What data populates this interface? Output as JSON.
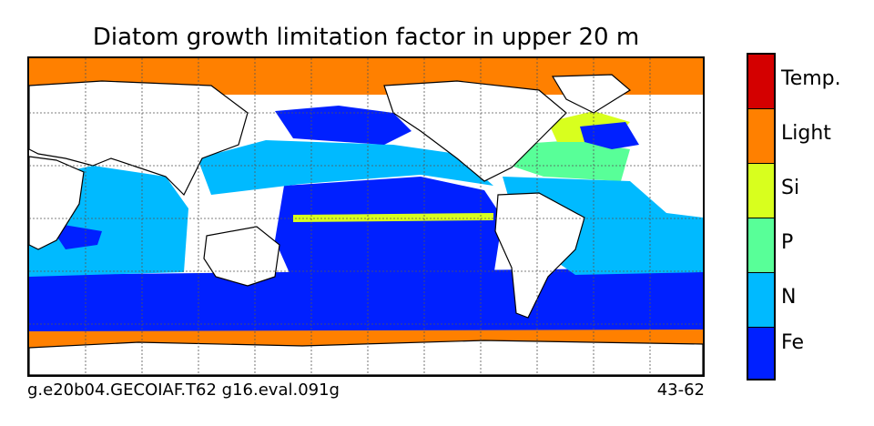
{
  "title": "Diatom growth limitation factor in upper 20 m",
  "footer": {
    "left": "g.e20b04.GECOIAF.T62 g16.eval.091g",
    "right": "43-62"
  },
  "colorbar": {
    "categories": [
      {
        "label": "Temp.",
        "color": "#d40000"
      },
      {
        "label": "Light",
        "color": "#ff8000"
      },
      {
        "label": "Si",
        "color": "#d8ff1e"
      },
      {
        "label": "P",
        "color": "#58ff98"
      },
      {
        "label": "N",
        "color": "#00baff"
      },
      {
        "label": "Fe",
        "color": "#0020ff"
      }
    ]
  },
  "map": {
    "projection": "equirectangular",
    "central_longitude": "Pacific-centered",
    "gridlines": true,
    "land_color": "#ffffff"
  }
}
